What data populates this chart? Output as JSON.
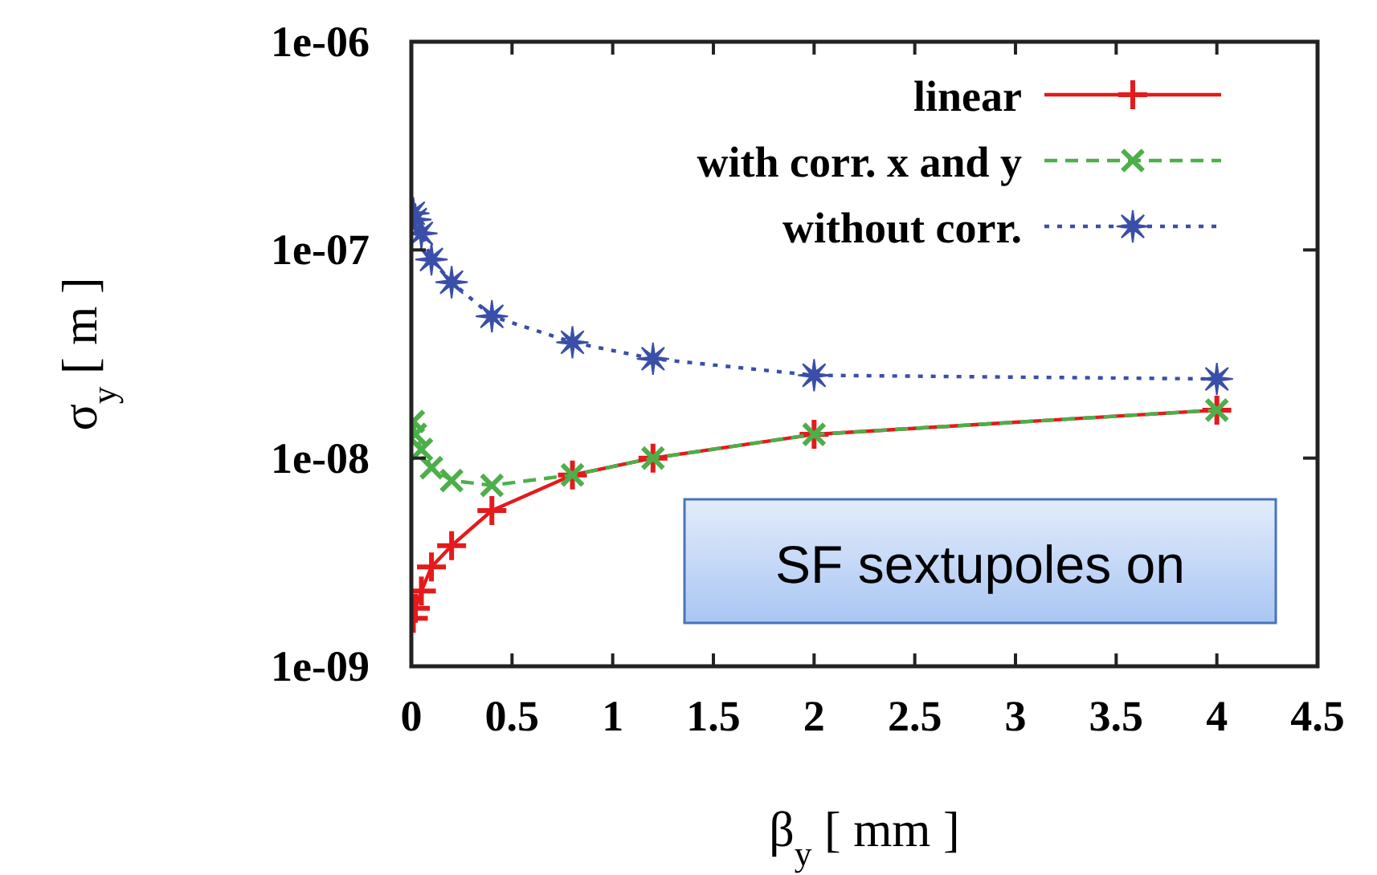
{
  "chart_data": {
    "type": "line",
    "xlabel": "β$_{y}$ [ mm ]",
    "ylabel": "σ$_{y}$ [ m ]",
    "log": "y",
    "xlim": [
      0,
      4.5
    ],
    "xticks": [
      0,
      0.5,
      1,
      1.5,
      2,
      2.5,
      3,
      3.5,
      4,
      4.5
    ],
    "ylim": [
      1e-09,
      1e-06
    ],
    "yticks": [
      {
        "value": 1e-09,
        "label": "1e-09"
      },
      {
        "value": 1e-08,
        "label": "1e-08"
      },
      {
        "value": 1e-07,
        "label": "1e-07"
      },
      {
        "value": 1e-06,
        "label": "1e-06"
      }
    ],
    "grid": false,
    "legend": "top right",
    "annotations": [
      {
        "text": "SF sextupoles on"
      }
    ],
    "x": [
      0.01,
      0.02,
      0.05,
      0.1,
      0.2,
      0.4,
      0.8,
      1.2,
      2,
      4
    ],
    "series": [
      {
        "name": "linear",
        "color": "#e41a1c",
        "marker": "plus",
        "line_style": "solid",
        "values": [
          1.7e-09,
          1.9e-09,
          2.3e-09,
          3e-09,
          3.8e-09,
          5.6e-09,
          8.3e-09,
          1e-08,
          1.3e-08,
          1.7e-08
        ]
      },
      {
        "name": "with corr. x and y",
        "color": "#4daf4a",
        "marker": "cross",
        "line_style": "dashed",
        "values": [
          1.5e-08,
          1.3e-08,
          1.1e-08,
          9e-09,
          7.8e-09,
          7.4e-09,
          8.3e-09,
          1e-08,
          1.3e-08,
          1.7e-08
        ]
      },
      {
        "name": "without corr.",
        "color": "#3a4fa8",
        "marker": "star",
        "line_style": "dotted",
        "values": [
          1.5e-07,
          1.4e-07,
          1.2e-07,
          9e-08,
          7e-08,
          4.8e-08,
          3.6e-08,
          3e-08,
          2.5e-08,
          2.4e-08
        ]
      }
    ]
  }
}
